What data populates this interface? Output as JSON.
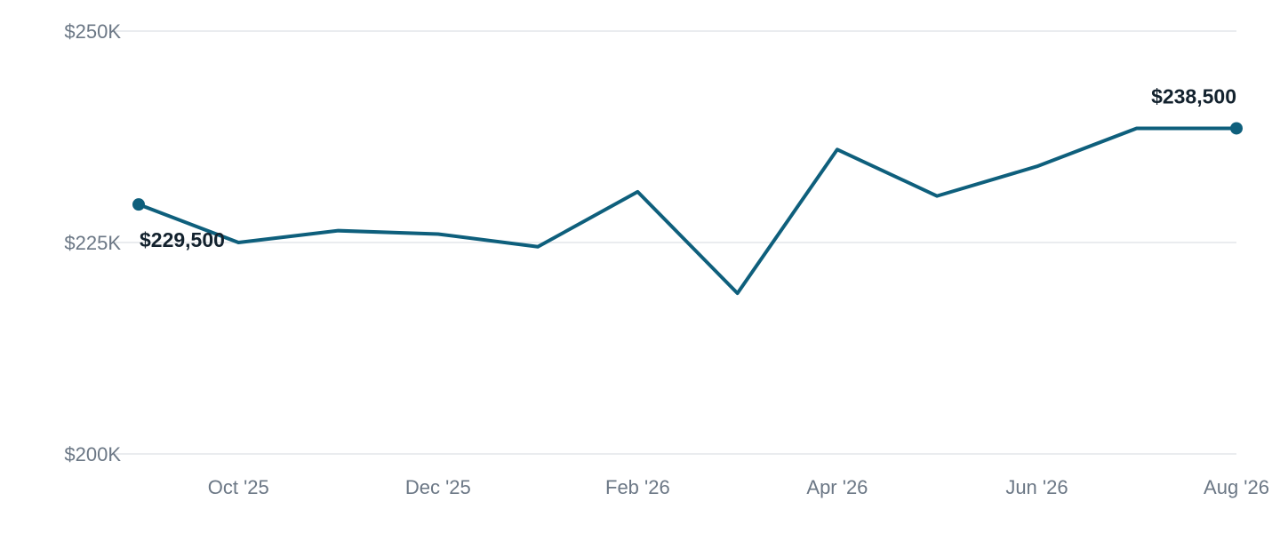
{
  "chart_data": {
    "type": "line",
    "title": "",
    "xlabel": "",
    "ylabel": "",
    "ylim": [
      200000,
      250000
    ],
    "y_ticks": [
      {
        "value": 200000,
        "label": "$200K"
      },
      {
        "value": 225000,
        "label": "$225K"
      },
      {
        "value": 250000,
        "label": "$250K"
      }
    ],
    "x": [
      "2025-09",
      "2025-10",
      "2025-11",
      "2025-12",
      "2026-01",
      "2026-02",
      "2026-03",
      "2026-04",
      "2026-05",
      "2026-06",
      "2026-07",
      "2026-08"
    ],
    "x_ticks": [
      {
        "x": "2025-10",
        "label": "Oct '25"
      },
      {
        "x": "2025-12",
        "label": "Dec '25"
      },
      {
        "x": "2026-02",
        "label": "Feb '26"
      },
      {
        "x": "2026-04",
        "label": "Apr '26"
      },
      {
        "x": "2026-06",
        "label": "Jun '26"
      },
      {
        "x": "2026-08",
        "label": "Aug '26"
      }
    ],
    "series": [
      {
        "color": "#0e5f7c",
        "values": [
          229500,
          225000,
          226400,
          226000,
          224500,
          231000,
          219000,
          236000,
          230500,
          234000,
          238500,
          238500
        ]
      }
    ],
    "data_labels": [
      {
        "x": "2025-09",
        "text": "$229,500"
      },
      {
        "x": "2026-08",
        "text": "$238,500"
      }
    ],
    "grid": true,
    "legend": "none"
  }
}
